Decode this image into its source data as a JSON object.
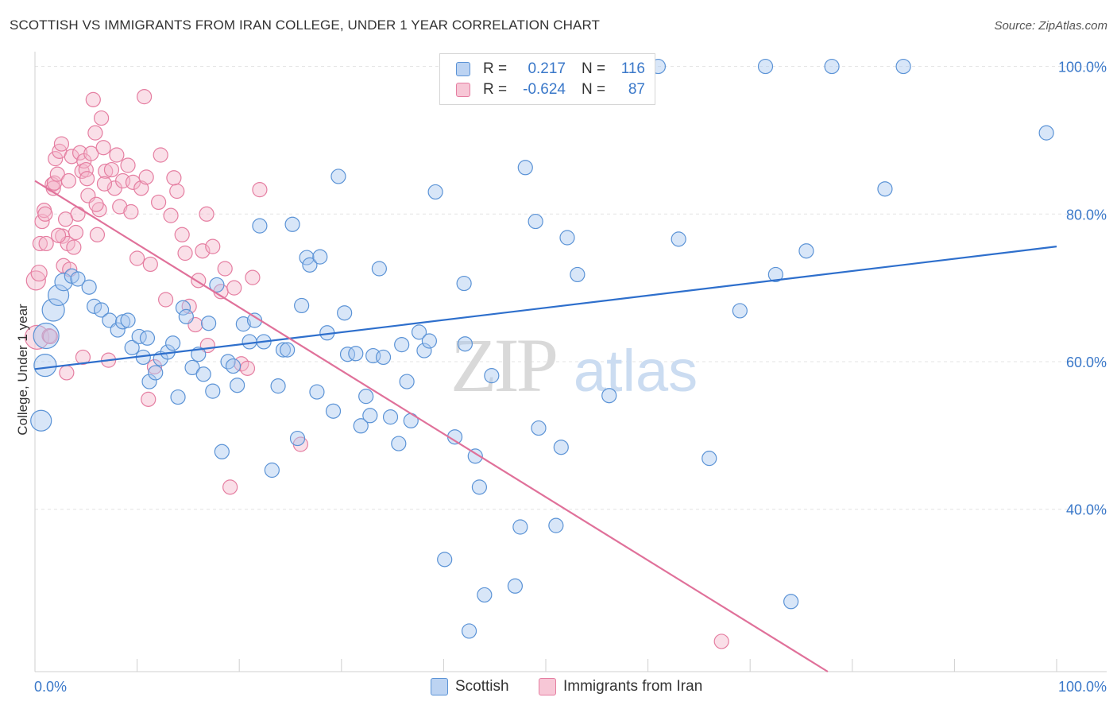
{
  "title": "SCOTTISH VS IMMIGRANTS FROM IRAN COLLEGE, UNDER 1 YEAR CORRELATION CHART",
  "source": "Source: ZipAtlas.com",
  "watermark": {
    "zip": "ZIP",
    "atlas": "atlas"
  },
  "legend": {
    "r_label": "R =",
    "n_label": "N =",
    "rows": [
      {
        "r": "0.217",
        "n": "116"
      },
      {
        "r": "-0.624",
        "n": "87"
      }
    ]
  },
  "colors": {
    "scottish_fill": "#a9c8ef",
    "scottish_stroke": "#5b93d6",
    "scottish_line": "#2e6fcc",
    "iran_fill": "#f4b8cc",
    "iran_stroke": "#e57ea1",
    "iran_line": "#e0719a",
    "axis_value_text": "#3a78c9"
  },
  "chart_data": {
    "type": "scatter",
    "title": "SCOTTISH VS IMMIGRANTS FROM IRAN COLLEGE, UNDER 1 YEAR CORRELATION CHART",
    "xlabel": "",
    "ylabel": "College, Under 1 year",
    "xlim": [
      0,
      100
    ],
    "ylim": [
      18,
      102
    ],
    "x_tick_labels": [
      "0.0%",
      "100.0%"
    ],
    "y_ticks": [
      {
        "value": 100,
        "label": "100.0%"
      },
      {
        "value": 80,
        "label": "80.0%"
      },
      {
        "value": 60,
        "label": "60.0%"
      },
      {
        "value": 40,
        "label": "40.0%"
      }
    ],
    "grid": "horizontal dashed",
    "legend_position": "top-center",
    "series": [
      {
        "name": "Scottish",
        "r": 0.217,
        "n": 116,
        "trend": {
          "x": [
            0,
            100
          ],
          "y": [
            59,
            75.6
          ]
        },
        "points": [
          [
            0.6,
            52,
            13
          ],
          [
            1,
            59.5,
            14
          ],
          [
            1.1,
            63.5,
            16
          ],
          [
            1.8,
            67,
            14
          ],
          [
            2.3,
            69,
            13
          ],
          [
            2.8,
            70.8,
            11
          ],
          [
            3.6,
            71.6,
            9
          ],
          [
            4.2,
            71.2,
            9
          ],
          [
            5.3,
            70.1,
            9
          ],
          [
            5.8,
            67.5,
            9
          ],
          [
            6.5,
            67,
            9
          ],
          [
            7.3,
            65.6,
            9
          ],
          [
            8.1,
            64.3,
            9
          ],
          [
            8.6,
            65.4,
            9
          ],
          [
            9.1,
            65.6,
            9
          ],
          [
            9.5,
            61.9,
            9
          ],
          [
            10.2,
            63.4,
            9
          ],
          [
            10.6,
            60.6,
            9
          ],
          [
            11,
            63.2,
            9
          ],
          [
            11.2,
            57.3,
            9
          ],
          [
            11.8,
            58.5,
            9
          ],
          [
            12.3,
            60.4,
            9
          ],
          [
            13,
            61.3,
            9
          ],
          [
            13.5,
            62.5,
            9
          ],
          [
            14,
            55.2,
            9
          ],
          [
            14.5,
            67.3,
            9
          ],
          [
            14.8,
            66.1,
            9
          ],
          [
            15.4,
            59.2,
            9
          ],
          [
            16,
            61,
            9
          ],
          [
            16.5,
            58.3,
            9
          ],
          [
            17,
            65.2,
            9
          ],
          [
            17.4,
            56,
            9
          ],
          [
            17.8,
            70.4,
            9
          ],
          [
            18.3,
            47.8,
            9
          ],
          [
            18.9,
            60,
            9
          ],
          [
            19.4,
            59.4,
            9
          ],
          [
            19.8,
            56.8,
            9
          ],
          [
            20.4,
            65.1,
            9
          ],
          [
            21,
            62.7,
            9
          ],
          [
            21.5,
            65.6,
            9
          ],
          [
            22,
            78.4,
            9
          ],
          [
            22.4,
            62.7,
            9
          ],
          [
            23.2,
            45.3,
            9
          ],
          [
            23.8,
            56.7,
            9
          ],
          [
            24.3,
            61.6,
            9
          ],
          [
            24.7,
            61.6,
            9
          ],
          [
            25.2,
            78.6,
            9
          ],
          [
            25.7,
            49.6,
            9
          ],
          [
            26.1,
            67.6,
            9
          ],
          [
            26.6,
            74.1,
            9
          ],
          [
            26.9,
            73.1,
            9
          ],
          [
            27.6,
            55.9,
            9
          ],
          [
            27.9,
            74.2,
            9
          ],
          [
            28.6,
            63.9,
            9
          ],
          [
            29.2,
            53.3,
            9
          ],
          [
            29.7,
            85.1,
            9
          ],
          [
            30.3,
            66.6,
            9
          ],
          [
            30.6,
            61,
            9
          ],
          [
            31.4,
            61.1,
            9
          ],
          [
            31.9,
            51.3,
            9
          ],
          [
            32.4,
            55.3,
            9
          ],
          [
            32.8,
            52.7,
            9
          ],
          [
            33.1,
            60.8,
            9
          ],
          [
            33.7,
            72.6,
            9
          ],
          [
            34.1,
            60.6,
            9
          ],
          [
            34.8,
            52.5,
            9
          ],
          [
            35.6,
            48.9,
            9
          ],
          [
            35.9,
            62.3,
            9
          ],
          [
            36.4,
            57.3,
            9
          ],
          [
            36.8,
            52,
            9
          ],
          [
            37.6,
            64,
            9
          ],
          [
            38.1,
            61.5,
            9
          ],
          [
            38.6,
            62.8,
            9
          ],
          [
            39.2,
            83,
            9
          ],
          [
            40.1,
            33.2,
            9
          ],
          [
            41.1,
            49.8,
            9
          ],
          [
            41.5,
            100,
            9
          ],
          [
            42.1,
            62.4,
            9
          ],
          [
            42,
            70.6,
            9
          ],
          [
            42.5,
            23.5,
            9
          ],
          [
            43.1,
            47.2,
            9
          ],
          [
            43.5,
            43,
            9
          ],
          [
            44,
            28.4,
            9
          ],
          [
            44.7,
            58.1,
            9
          ],
          [
            46,
            100,
            9
          ],
          [
            47,
            29.6,
            9
          ],
          [
            47.5,
            37.6,
            9
          ],
          [
            48,
            86.3,
            9
          ],
          [
            49,
            79,
            9
          ],
          [
            49.3,
            51,
            9
          ],
          [
            51,
            37.8,
            9
          ],
          [
            51.5,
            48.4,
            9
          ],
          [
            52.1,
            76.8,
            9
          ],
          [
            53.1,
            71.8,
            9
          ],
          [
            55.2,
            100,
            9
          ],
          [
            56.2,
            55.4,
            9
          ],
          [
            57,
            100,
            9
          ],
          [
            61,
            100,
            9
          ],
          [
            63,
            76.6,
            9
          ],
          [
            66,
            46.9,
            9
          ],
          [
            69,
            66.9,
            9
          ],
          [
            71.5,
            100,
            9
          ],
          [
            72.5,
            71.8,
            9
          ],
          [
            74,
            27.5,
            9
          ],
          [
            75.5,
            75,
            9
          ],
          [
            78,
            100,
            9
          ],
          [
            83.2,
            83.4,
            9
          ],
          [
            85,
            100,
            9
          ],
          [
            99,
            91,
            9
          ]
        ]
      },
      {
        "name": "Immigrants from Iran",
        "r": -0.624,
        "n": 87,
        "trend": {
          "x": [
            0,
            77.6
          ],
          "y": [
            84.5,
            18
          ]
        },
        "points": [
          [
            0.1,
            71,
            12
          ],
          [
            0.2,
            63.3,
            15
          ],
          [
            0.4,
            72,
            10
          ],
          [
            0.5,
            76,
            9
          ],
          [
            0.7,
            79,
            9
          ],
          [
            0.9,
            80.5,
            9
          ],
          [
            1,
            80,
            9
          ],
          [
            1.1,
            76,
            9
          ],
          [
            1.4,
            63.5,
            9
          ],
          [
            1.7,
            84,
            9
          ],
          [
            1.8,
            83.5,
            9
          ],
          [
            1.9,
            84.2,
            9
          ],
          [
            2,
            87.5,
            9
          ],
          [
            2.2,
            85.4,
            9
          ],
          [
            2.4,
            88.5,
            9
          ],
          [
            2.6,
            89.5,
            9
          ],
          [
            2.7,
            77,
            9
          ],
          [
            2.8,
            73,
            9
          ],
          [
            3,
            79.3,
            9
          ],
          [
            3.2,
            76,
            9
          ],
          [
            3.3,
            84.5,
            9
          ],
          [
            3.4,
            72.5,
            9
          ],
          [
            3.6,
            87.8,
            9
          ],
          [
            3.8,
            75.5,
            9
          ],
          [
            4,
            77.5,
            9
          ],
          [
            4.2,
            80,
            9
          ],
          [
            4.4,
            88.3,
            9
          ],
          [
            4.6,
            85.8,
            9
          ],
          [
            4.8,
            87.2,
            9
          ],
          [
            5,
            86,
            9
          ],
          [
            5.1,
            84.8,
            9
          ],
          [
            5.2,
            82.5,
            9
          ],
          [
            5.5,
            88.2,
            9
          ],
          [
            5.7,
            95.5,
            9
          ],
          [
            5.9,
            91,
            9
          ],
          [
            6.1,
            77.2,
            9
          ],
          [
            6.3,
            80.6,
            9
          ],
          [
            6.5,
            93,
            9
          ],
          [
            6.7,
            89,
            9
          ],
          [
            6.9,
            85.8,
            9
          ],
          [
            7.2,
            60.2,
            9
          ],
          [
            7.5,
            86,
            9
          ],
          [
            7.8,
            83.5,
            9
          ],
          [
            8,
            88,
            9
          ],
          [
            8.3,
            81,
            9
          ],
          [
            8.6,
            84.5,
            9
          ],
          [
            9.1,
            86.6,
            9
          ],
          [
            9.6,
            84.3,
            9
          ],
          [
            10,
            74,
            9
          ],
          [
            10.4,
            83.5,
            9
          ],
          [
            10.9,
            85,
            9
          ],
          [
            11.3,
            73.2,
            9
          ],
          [
            11.7,
            59.3,
            9
          ],
          [
            12.3,
            88,
            9
          ],
          [
            12.8,
            68.4,
            9
          ],
          [
            13.3,
            79.8,
            9
          ],
          [
            13.9,
            83.1,
            9
          ],
          [
            14.4,
            77.2,
            9
          ],
          [
            14.7,
            74.7,
            9
          ],
          [
            15.1,
            67.5,
            9
          ],
          [
            15.7,
            65,
            9
          ],
          [
            16,
            71,
            9
          ],
          [
            16.4,
            75,
            9
          ],
          [
            16.8,
            80,
            9
          ],
          [
            17.4,
            75.6,
            9
          ],
          [
            18.2,
            69.5,
            9
          ],
          [
            19.1,
            43,
            9
          ],
          [
            19.5,
            70,
            9
          ],
          [
            20.2,
            59.7,
            9
          ],
          [
            21.3,
            71.4,
            9
          ],
          [
            22,
            83.3,
            9
          ],
          [
            26,
            48.8,
            9
          ],
          [
            1.5,
            63.4,
            9
          ],
          [
            2.3,
            77.1,
            9
          ],
          [
            3.1,
            58.5,
            9
          ],
          [
            4.7,
            60.6,
            9
          ],
          [
            6,
            81.3,
            9
          ],
          [
            6.8,
            84.1,
            9
          ],
          [
            9.4,
            80.3,
            9
          ],
          [
            10.7,
            95.9,
            9
          ],
          [
            11.1,
            54.9,
            9
          ],
          [
            12.1,
            81.6,
            9
          ],
          [
            13.6,
            84.9,
            9
          ],
          [
            16.9,
            62.2,
            9
          ],
          [
            18.6,
            72.6,
            9
          ],
          [
            20.8,
            59.1,
            9
          ],
          [
            67.2,
            22.1,
            9
          ]
        ]
      }
    ]
  },
  "bottom_legend": [
    "Scottish",
    "Immigrants from Iran"
  ]
}
